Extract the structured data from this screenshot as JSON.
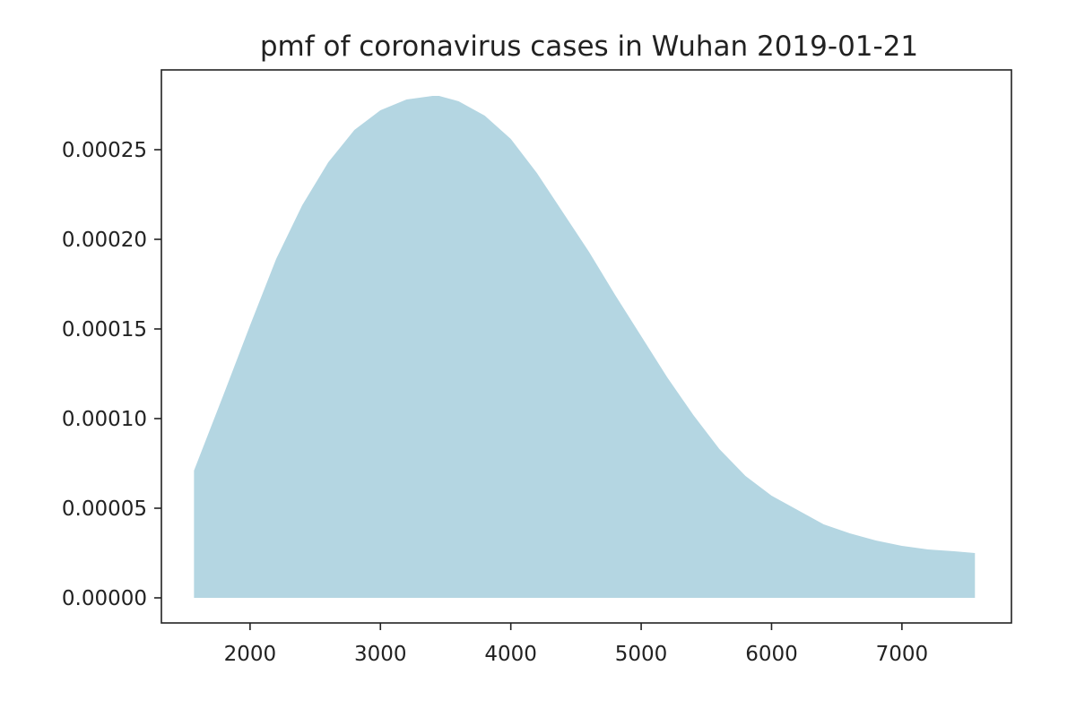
{
  "chart_data": {
    "type": "area",
    "title": "pmf of coronavirus cases in Wuhan 2019-01-21",
    "xlabel": "",
    "ylabel": "",
    "xlim": [
      1320,
      7840
    ],
    "ylim": [
      -1.4e-05,
      0.0002945
    ],
    "x_ticks": [
      2000,
      3000,
      4000,
      5000,
      6000,
      7000
    ],
    "x_tick_labels": [
      "2000",
      "3000",
      "4000",
      "5000",
      "6000",
      "7000"
    ],
    "y_ticks": [
      0,
      5e-05,
      0.0001,
      0.00015,
      0.0002,
      0.00025
    ],
    "y_tick_labels": [
      "0.00000",
      "0.00005",
      "0.00010",
      "0.00015",
      "0.00020",
      "0.00025"
    ],
    "grid": false,
    "fill_color": "#b4d6e2",
    "series": [
      {
        "x": [
          1570,
          1800,
          2000,
          2200,
          2400,
          2600,
          2800,
          3000,
          3200,
          3300,
          3400,
          3450,
          3500,
          3600,
          3800,
          4000,
          4200,
          4400,
          4600,
          4800,
          5000,
          5200,
          5400,
          5600,
          5800,
          6000,
          6200,
          6400,
          6600,
          6800,
          7000,
          7200,
          7400,
          7560
        ],
        "y": [
          7.1e-05,
          0.000114,
          0.000152,
          0.000189,
          0.000219,
          0.000243,
          0.000261,
          0.000272,
          0.000278,
          0.000279,
          0.00028,
          0.00028,
          0.000279,
          0.000277,
          0.000269,
          0.000256,
          0.000237,
          0.000215,
          0.000193,
          0.000169,
          0.000146,
          0.000123,
          0.000102,
          8.3e-05,
          6.8e-05,
          5.7e-05,
          4.9e-05,
          4.1e-05,
          3.6e-05,
          3.2e-05,
          2.9e-05,
          2.7e-05,
          2.6e-05,
          2.5e-05
        ]
      }
    ]
  }
}
